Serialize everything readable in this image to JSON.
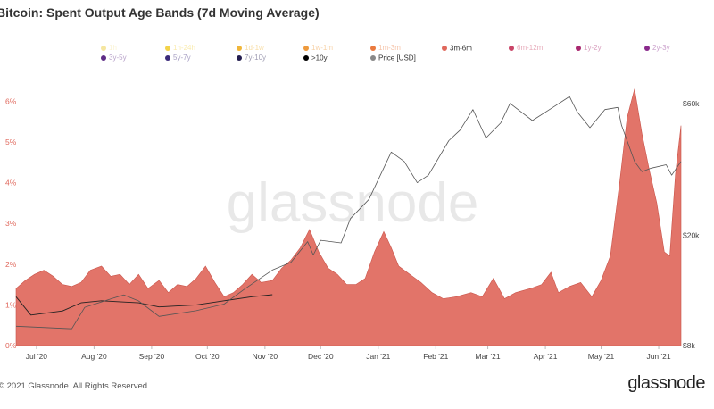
{
  "title": "Bitcoin: Spent Output Age Bands (7d Moving Average)",
  "legend": [
    {
      "label": "1h",
      "color": "#f5e6a0",
      "active": false
    },
    {
      "label": "1h-24h",
      "color": "#f3d34a",
      "active": false
    },
    {
      "label": "1d-1w",
      "color": "#f0b63a",
      "active": false
    },
    {
      "label": "1w-1m",
      "color": "#ee9a3c",
      "active": false
    },
    {
      "label": "1m-3m",
      "color": "#ea7a3e",
      "active": false
    },
    {
      "label": "3m-6m",
      "color": "#e0685c",
      "active": true
    },
    {
      "label": "6m-12m",
      "color": "#c94467",
      "active": false
    },
    {
      "label": "1y-2y",
      "color": "#a9286f",
      "active": false
    },
    {
      "label": "2y-3y",
      "color": "#8a2a8c",
      "active": false
    },
    {
      "label": "3y-5y",
      "color": "#5e2c86",
      "active": false
    },
    {
      "label": "5y-7y",
      "color": "#3b2a7a",
      "active": false
    },
    {
      "label": "7y-10y",
      "color": "#231d4f",
      "active": false
    },
    {
      "label": ">10y",
      "color": "#000000",
      "active": true
    },
    {
      "label": "Price [USD]",
      "color": "#888888",
      "active": true
    }
  ],
  "watermark": "glassnode",
  "footer": {
    "copyright": "© 2021 Glassnode. All Rights Reserved.",
    "logo": "glassnode"
  },
  "chart_data": {
    "type": "area",
    "title": "Bitcoin: Spent Output Age Bands (7d Moving Average)",
    "x_ticks": [
      "Jul '20",
      "Aug '20",
      "Sep '20",
      "Oct '20",
      "Nov '20",
      "Dec '20",
      "Jan '21",
      "Feb '21",
      "Mar '21",
      "Apr '21",
      "May '21",
      "Jun '21"
    ],
    "y_left": {
      "ticks": [
        "0%",
        "1%",
        "2%",
        "3%",
        "4%",
        "5%",
        "6%"
      ],
      "range": [
        0,
        6.4
      ],
      "unit": "%"
    },
    "y_right": {
      "ticks": [
        "$8k",
        "$20k",
        "$60k"
      ],
      "scale": "log",
      "range": [
        8000,
        70000
      ]
    },
    "grid": false,
    "series": [
      {
        "name": "3m-6m",
        "axis": "left",
        "color": "#e0685c",
        "points": [
          [
            "2020-06-20",
            1.4
          ],
          [
            "2020-06-25",
            1.6
          ],
          [
            "2020-06-30",
            1.75
          ],
          [
            "2020-07-05",
            1.85
          ],
          [
            "2020-07-10",
            1.7
          ],
          [
            "2020-07-15",
            1.5
          ],
          [
            "2020-07-20",
            1.45
          ],
          [
            "2020-07-25",
            1.55
          ],
          [
            "2020-07-30",
            1.85
          ],
          [
            "2020-08-05",
            1.95
          ],
          [
            "2020-08-10",
            1.7
          ],
          [
            "2020-08-15",
            1.75
          ],
          [
            "2020-08-20",
            1.5
          ],
          [
            "2020-08-25",
            1.75
          ],
          [
            "2020-08-30",
            1.4
          ],
          [
            "2020-09-05",
            1.6
          ],
          [
            "2020-09-10",
            1.3
          ],
          [
            "2020-09-15",
            1.5
          ],
          [
            "2020-09-20",
            1.45
          ],
          [
            "2020-09-25",
            1.65
          ],
          [
            "2020-09-30",
            1.95
          ],
          [
            "2020-10-05",
            1.55
          ],
          [
            "2020-10-10",
            1.2
          ],
          [
            "2020-10-15",
            1.3
          ],
          [
            "2020-10-20",
            1.5
          ],
          [
            "2020-10-25",
            1.75
          ],
          [
            "2020-10-30",
            1.55
          ],
          [
            "2020-11-05",
            1.6
          ],
          [
            "2020-11-10",
            1.9
          ],
          [
            "2020-11-15",
            2.1
          ],
          [
            "2020-11-20",
            2.4
          ],
          [
            "2020-11-25",
            2.85
          ],
          [
            "2020-11-30",
            2.3
          ],
          [
            "2020-12-05",
            1.9
          ],
          [
            "2020-12-10",
            1.75
          ],
          [
            "2020-12-15",
            1.5
          ],
          [
            "2020-12-20",
            1.5
          ],
          [
            "2020-12-25",
            1.65
          ],
          [
            "2020-12-30",
            2.3
          ],
          [
            "2021-01-04",
            2.8
          ],
          [
            "2021-01-08",
            2.4
          ],
          [
            "2021-01-12",
            1.95
          ],
          [
            "2021-01-18",
            1.75
          ],
          [
            "2021-01-24",
            1.55
          ],
          [
            "2021-01-30",
            1.3
          ],
          [
            "2021-02-05",
            1.15
          ],
          [
            "2021-02-12",
            1.2
          ],
          [
            "2021-02-20",
            1.3
          ],
          [
            "2021-02-26",
            1.2
          ],
          [
            "2021-03-04",
            1.65
          ],
          [
            "2021-03-10",
            1.15
          ],
          [
            "2021-03-16",
            1.3
          ],
          [
            "2021-03-24",
            1.4
          ],
          [
            "2021-03-30",
            1.5
          ],
          [
            "2021-04-04",
            1.8
          ],
          [
            "2021-04-08",
            1.3
          ],
          [
            "2021-04-14",
            1.45
          ],
          [
            "2021-04-20",
            1.55
          ],
          [
            "2021-04-26",
            1.2
          ],
          [
            "2021-05-01",
            1.6
          ],
          [
            "2021-05-06",
            2.2
          ],
          [
            "2021-05-11",
            4.0
          ],
          [
            "2021-05-15",
            5.6
          ],
          [
            "2021-05-19",
            6.3
          ],
          [
            "2021-05-23",
            5.2
          ],
          [
            "2021-05-27",
            4.3
          ],
          [
            "2021-05-31",
            3.5
          ],
          [
            "2021-06-04",
            2.3
          ],
          [
            "2021-06-07",
            2.2
          ],
          [
            "2021-06-10",
            4.2
          ],
          [
            "2021-06-13",
            5.4
          ]
        ]
      },
      {
        "name": ">10y",
        "axis": "left",
        "color": "#000000",
        "points": [
          [
            "2020-06-20",
            1.2
          ],
          [
            "2020-06-28",
            0.75
          ],
          [
            "2020-07-15",
            0.85
          ],
          [
            "2020-07-25",
            1.05
          ],
          [
            "2020-08-05",
            1.1
          ],
          [
            "2020-08-25",
            1.05
          ],
          [
            "2020-09-05",
            0.95
          ],
          [
            "2020-09-25",
            1.0
          ],
          [
            "2020-10-10",
            1.1
          ],
          [
            "2020-10-25",
            1.2
          ],
          [
            "2020-11-05",
            1.25
          ]
        ]
      },
      {
        "name": "Price [USD]",
        "axis": "right",
        "color": "#888888",
        "points": [
          [
            "2020-06-20",
            9400
          ],
          [
            "2020-07-20",
            9200
          ],
          [
            "2020-07-27",
            11000
          ],
          [
            "2020-08-10",
            11800
          ],
          [
            "2020-08-17",
            12200
          ],
          [
            "2020-08-25",
            11600
          ],
          [
            "2020-09-05",
            10200
          ],
          [
            "2020-09-25",
            10700
          ],
          [
            "2020-10-10",
            11300
          ],
          [
            "2020-10-21",
            12800
          ],
          [
            "2020-11-05",
            15000
          ],
          [
            "2020-11-15",
            16000
          ],
          [
            "2020-11-24",
            19000
          ],
          [
            "2020-11-27",
            17000
          ],
          [
            "2020-12-01",
            19200
          ],
          [
            "2020-12-12",
            18800
          ],
          [
            "2020-12-17",
            23000
          ],
          [
            "2020-12-27",
            27000
          ],
          [
            "2021-01-08",
            40000
          ],
          [
            "2021-01-15",
            37000
          ],
          [
            "2021-01-22",
            31000
          ],
          [
            "2021-01-28",
            33000
          ],
          [
            "2021-02-08",
            44000
          ],
          [
            "2021-02-14",
            48000
          ],
          [
            "2021-02-21",
            57000
          ],
          [
            "2021-02-28",
            45000
          ],
          [
            "2021-03-08",
            51000
          ],
          [
            "2021-03-13",
            60000
          ],
          [
            "2021-03-25",
            52000
          ],
          [
            "2021-04-05",
            58000
          ],
          [
            "2021-04-14",
            63500
          ],
          [
            "2021-04-18",
            56000
          ],
          [
            "2021-04-25",
            49000
          ],
          [
            "2021-05-03",
            57000
          ],
          [
            "2021-05-10",
            58000
          ],
          [
            "2021-05-12",
            50000
          ],
          [
            "2021-05-19",
            37000
          ],
          [
            "2021-05-23",
            34000
          ],
          [
            "2021-05-28",
            35000
          ],
          [
            "2021-06-05",
            36000
          ],
          [
            "2021-06-08",
            33000
          ],
          [
            "2021-06-13",
            37000
          ]
        ]
      }
    ]
  }
}
